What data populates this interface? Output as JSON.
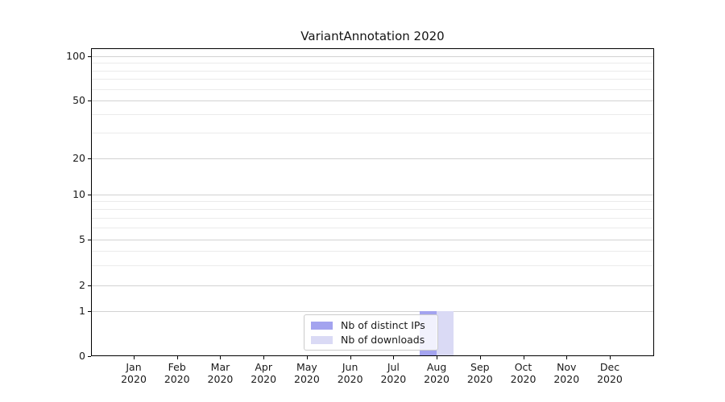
{
  "figure": {
    "title": "VariantAnnotation 2020"
  },
  "chart_data": {
    "type": "bar",
    "title": "VariantAnnotation 2020",
    "categories": [
      {
        "month": "Jan",
        "year": "2020"
      },
      {
        "month": "Feb",
        "year": "2020"
      },
      {
        "month": "Mar",
        "year": "2020"
      },
      {
        "month": "Apr",
        "year": "2020"
      },
      {
        "month": "May",
        "year": "2020"
      },
      {
        "month": "Jun",
        "year": "2020"
      },
      {
        "month": "Jul",
        "year": "2020"
      },
      {
        "month": "Aug",
        "year": "2020"
      },
      {
        "month": "Sep",
        "year": "2020"
      },
      {
        "month": "Oct",
        "year": "2020"
      },
      {
        "month": "Nov",
        "year": "2020"
      },
      {
        "month": "Dec",
        "year": "2020"
      }
    ],
    "series": [
      {
        "name": "Nb of distinct IPs",
        "color": "#a3a3ef",
        "values": [
          0,
          0,
          0,
          0,
          0,
          0,
          0,
          1,
          0,
          0,
          0,
          0
        ]
      },
      {
        "name": "Nb of downloads",
        "color": "#dadaf5",
        "values": [
          0,
          0,
          0,
          0,
          0,
          0,
          0,
          1,
          0,
          0,
          0,
          0
        ]
      }
    ],
    "y_axis": {
      "scale": "log above 1, linear 0-1",
      "major_ticks": [
        0,
        1,
        2,
        5,
        10,
        20,
        50,
        100
      ],
      "minor_ticks": [
        3,
        4,
        6,
        7,
        8,
        9,
        30,
        40,
        60,
        70,
        80,
        90
      ],
      "range": [
        0,
        110
      ]
    },
    "x_axis": {
      "year_row": "2020"
    },
    "legend_position": "lower center",
    "grid": "horizontal"
  }
}
